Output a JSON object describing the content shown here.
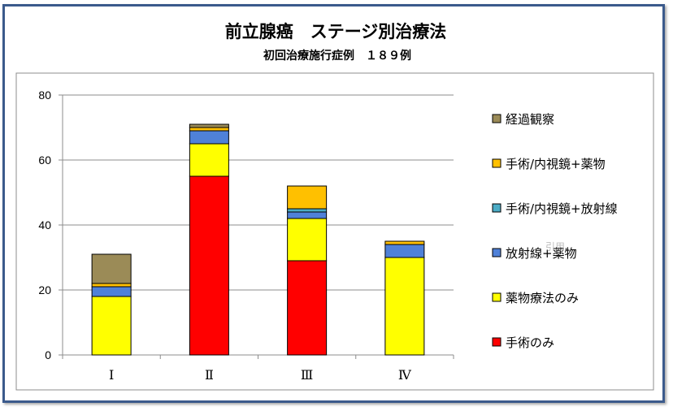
{
  "chart_data": {
    "type": "bar",
    "stacked": true,
    "title": "前立腺癌　ステージ別治療法",
    "subtitle": "初回治療施行症例　１８９例",
    "xlabel": "",
    "ylabel": "",
    "ylim": [
      0,
      80
    ],
    "yticks": [
      0,
      20,
      40,
      60,
      80
    ],
    "categories": [
      "Ⅰ",
      "Ⅱ",
      "Ⅲ",
      "Ⅳ"
    ],
    "grid": true,
    "legend_position": "right",
    "series": [
      {
        "name": "手術のみ",
        "color": "#ff0000",
        "values": [
          0,
          55,
          29,
          0
        ]
      },
      {
        "name": "薬物療法のみ",
        "color": "#ffff00",
        "values": [
          18,
          10,
          13,
          30
        ]
      },
      {
        "name": "放射線+薬物",
        "color": "#4f81d8",
        "values": [
          3,
          4,
          2,
          4
        ]
      },
      {
        "name": "手術/内視鏡+放射線",
        "color": "#4bacc6",
        "values": [
          0,
          0,
          1,
          0
        ]
      },
      {
        "name": "手術/内視鏡+薬物",
        "color": "#ffc000",
        "values": [
          1,
          1,
          7,
          1
        ]
      },
      {
        "name": "経過観察",
        "color": "#9b8b57",
        "values": [
          9,
          1,
          0,
          0
        ]
      }
    ],
    "watermark": "引用"
  }
}
